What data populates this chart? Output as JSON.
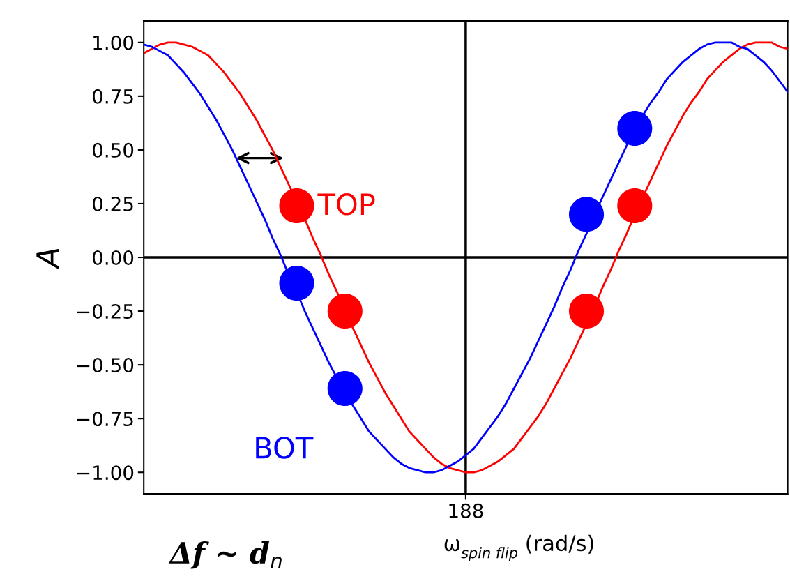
{
  "chart_data": {
    "type": "line",
    "categories": [
      null,
      null,
      null,
      null,
      null,
      null,
      null,
      null,
      null,
      null,
      null,
      null,
      null,
      null,
      null,
      null,
      null,
      null,
      null,
      null,
      null,
      null,
      null,
      null,
      null,
      null,
      null,
      null,
      null,
      null,
      null,
      null,
      null,
      null,
      null,
      null,
      null,
      null,
      null,
      null,
      "188",
      null,
      null,
      null,
      null,
      null,
      null,
      null,
      null,
      null,
      null,
      null,
      null,
      null,
      null,
      null,
      null,
      null,
      null,
      null,
      null,
      null,
      null,
      null,
      null,
      null,
      null,
      null,
      null,
      null,
      null,
      null,
      null,
      null,
      null,
      null,
      null,
      null,
      null,
      null,
      null
    ],
    "xlabel": "ω$_{spin flip}$ (rad/s)",
    "ylabel": "A",
    "annotations": [
      "Δf ~ d$_{n}$"
    ],
    "ylim": [
      -1.1,
      1.1
    ],
    "yticks": [
      {
        "value": -1,
        "label": "−1.00"
      },
      {
        "value": -0.75,
        "label": "−0.75"
      },
      {
        "value": -0.5,
        "label": "−0.50"
      },
      {
        "value": -0.25,
        "label": "−0.25"
      },
      {
        "value": 0,
        "label": "0.00"
      },
      {
        "value": 0.25,
        "label": "0.25"
      },
      {
        "value": 0.5,
        "label": "0.50"
      },
      {
        "value": 0.75,
        "label": "0.75"
      },
      {
        "value": 1,
        "label": "1.00"
      }
    ],
    "grid": false,
    "legend": false,
    "marker": "none",
    "ref_lines": [
      {
        "axis": "x",
        "value": "188",
        "color": "#000000"
      },
      {
        "axis": "y",
        "value": 0,
        "color": "#000000"
      }
    ],
    "series": [
      {
        "name": "TOP",
        "color": "#ff0000",
        "values": [
          0.95,
          0.97,
          0.99,
          1.0,
          1.0,
          0.99,
          0.98,
          0.96,
          0.94,
          0.9,
          0.86,
          0.81,
          0.76,
          0.7,
          0.64,
          0.57,
          0.5,
          0.42,
          0.34,
          0.26,
          0.18,
          0.09,
          0.01,
          -0.08,
          -0.16,
          -0.25,
          -0.33,
          -0.41,
          -0.49,
          -0.56,
          -0.63,
          -0.69,
          -0.75,
          -0.81,
          -0.85,
          -0.89,
          -0.93,
          -0.96,
          -0.98,
          -0.99,
          -1.0,
          -1.0,
          -0.99,
          -0.97,
          -0.95,
          -0.92,
          -0.89,
          -0.84,
          -0.79,
          -0.74,
          -0.68,
          -0.61,
          -0.54,
          -0.47,
          -0.39,
          -0.31,
          -0.23,
          -0.14,
          -0.06,
          0.03,
          0.11,
          0.2,
          0.28,
          0.36,
          0.44,
          0.52,
          0.59,
          0.66,
          0.72,
          0.77,
          0.83,
          0.87,
          0.91,
          0.94,
          0.97,
          0.99,
          1.0,
          1.0,
          1.0,
          0.98,
          0.97
        ]
      },
      {
        "name": "BOT",
        "color": "#0000ff",
        "values": [
          0.99,
          0.98,
          0.96,
          0.94,
          0.9,
          0.86,
          0.81,
          0.76,
          0.7,
          0.64,
          0.57,
          0.5,
          0.42,
          0.34,
          0.26,
          0.18,
          0.09,
          0.01,
          -0.08,
          -0.16,
          -0.25,
          -0.33,
          -0.41,
          -0.49,
          -0.56,
          -0.63,
          -0.69,
          -0.75,
          -0.81,
          -0.85,
          -0.89,
          -0.93,
          -0.96,
          -0.98,
          -0.99,
          -1.0,
          -1.0,
          -0.99,
          -0.97,
          -0.95,
          -0.92,
          -0.89,
          -0.84,
          -0.79,
          -0.74,
          -0.68,
          -0.61,
          -0.54,
          -0.47,
          -0.39,
          -0.31,
          -0.23,
          -0.14,
          -0.06,
          0.03,
          0.11,
          0.2,
          0.28,
          0.36,
          0.44,
          0.52,
          0.59,
          0.66,
          0.72,
          0.77,
          0.83,
          0.87,
          0.91,
          0.94,
          0.97,
          0.99,
          1.0,
          1.0,
          1.0,
          0.98,
          0.97,
          0.94,
          0.91,
          0.87,
          0.82,
          0.77
        ]
      },
      {
        "type": "scatter",
        "marker": "circle",
        "color": "#ff0000",
        "values": [
          null,
          null,
          null,
          null,
          null,
          null,
          null,
          null,
          null,
          null,
          null,
          null,
          null,
          null,
          null,
          null,
          null,
          null,
          null,
          0.24,
          null,
          null,
          null,
          null,
          null,
          -0.25,
          null,
          null,
          null,
          null,
          null,
          null,
          null,
          null,
          null,
          null,
          null,
          null,
          null,
          null,
          null,
          null,
          null,
          null,
          null,
          null,
          null,
          null,
          null,
          null,
          null,
          null,
          null,
          null,
          null,
          -0.25,
          null,
          null,
          null,
          null,
          null,
          0.24,
          null,
          null,
          null,
          null,
          null,
          null,
          null,
          null,
          null,
          null,
          null,
          null,
          null,
          null,
          null,
          null,
          null,
          null,
          null
        ]
      },
      {
        "type": "scatter",
        "marker": "circle",
        "color": "#0000ff",
        "values": [
          null,
          null,
          null,
          null,
          null,
          null,
          null,
          null,
          null,
          null,
          null,
          null,
          null,
          null,
          null,
          null,
          null,
          null,
          null,
          -0.12,
          null,
          null,
          null,
          null,
          null,
          -0.61,
          null,
          null,
          null,
          null,
          null,
          null,
          null,
          null,
          null,
          null,
          null,
          null,
          null,
          null,
          null,
          null,
          null,
          null,
          null,
          null,
          null,
          null,
          null,
          null,
          null,
          null,
          null,
          null,
          null,
          0.2,
          null,
          null,
          null,
          null,
          null,
          0.6,
          null,
          null,
          null,
          null,
          null,
          null,
          null,
          null,
          null,
          null,
          null,
          null,
          null,
          null,
          null,
          null,
          null,
          null,
          null
        ]
      }
    ]
  }
}
